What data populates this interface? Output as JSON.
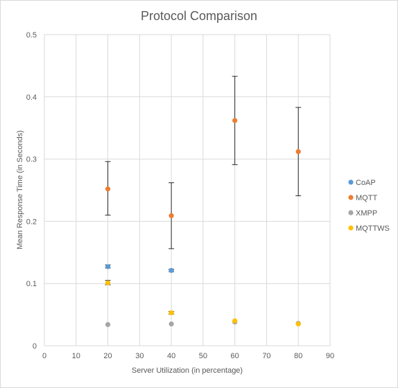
{
  "chart_data": {
    "type": "scatter",
    "title": "Protocol Comparison",
    "xlabel": "Server Utilization (in percentage)",
    "ylabel": "Mean Response Time (in Seconds)",
    "xlim": [
      0,
      90
    ],
    "ylim": [
      0,
      0.5
    ],
    "x_ticks": [
      0,
      10,
      20,
      30,
      40,
      50,
      60,
      70,
      80,
      90
    ],
    "y_ticks": [
      0,
      0.1,
      0.2,
      0.3,
      0.4,
      0.5
    ],
    "x_tick_labels": [
      "0",
      "10",
      "20",
      "30",
      "40",
      "50",
      "60",
      "70",
      "80",
      "90"
    ],
    "y_tick_labels": [
      "0",
      "0.1",
      "0.2",
      "0.3",
      "0.4",
      "0.5"
    ],
    "grid": true,
    "legend_position": "right",
    "series": [
      {
        "name": "CoAP",
        "color": "#5b9bd5",
        "points": [
          {
            "x": 20,
            "y": 0.127,
            "err_low": 0.125,
            "err_high": 0.13
          },
          {
            "x": 40,
            "y": 0.121,
            "err_low": 0.119,
            "err_high": 0.123
          }
        ]
      },
      {
        "name": "MQTT",
        "color": "#ed7d31",
        "points": [
          {
            "x": 20,
            "y": 0.252,
            "err_low": 0.21,
            "err_high": 0.296
          },
          {
            "x": 40,
            "y": 0.209,
            "err_low": 0.156,
            "err_high": 0.262
          },
          {
            "x": 60,
            "y": 0.362,
            "err_low": 0.291,
            "err_high": 0.433
          },
          {
            "x": 80,
            "y": 0.312,
            "err_low": 0.241,
            "err_high": 0.383
          }
        ]
      },
      {
        "name": "XMPP",
        "color": "#a5a5a5",
        "points": [
          {
            "x": 20,
            "y": 0.034
          },
          {
            "x": 40,
            "y": 0.035
          },
          {
            "x": 60,
            "y": 0.038
          },
          {
            "x": 80,
            "y": 0.036
          }
        ]
      },
      {
        "name": "MQTTWS",
        "color": "#ffc000",
        "points": [
          {
            "x": 20,
            "y": 0.101,
            "err_low": 0.098,
            "err_high": 0.105
          },
          {
            "x": 40,
            "y": 0.053,
            "err_low": 0.051,
            "err_high": 0.055
          },
          {
            "x": 60,
            "y": 0.04
          },
          {
            "x": 80,
            "y": 0.035
          }
        ]
      }
    ]
  }
}
